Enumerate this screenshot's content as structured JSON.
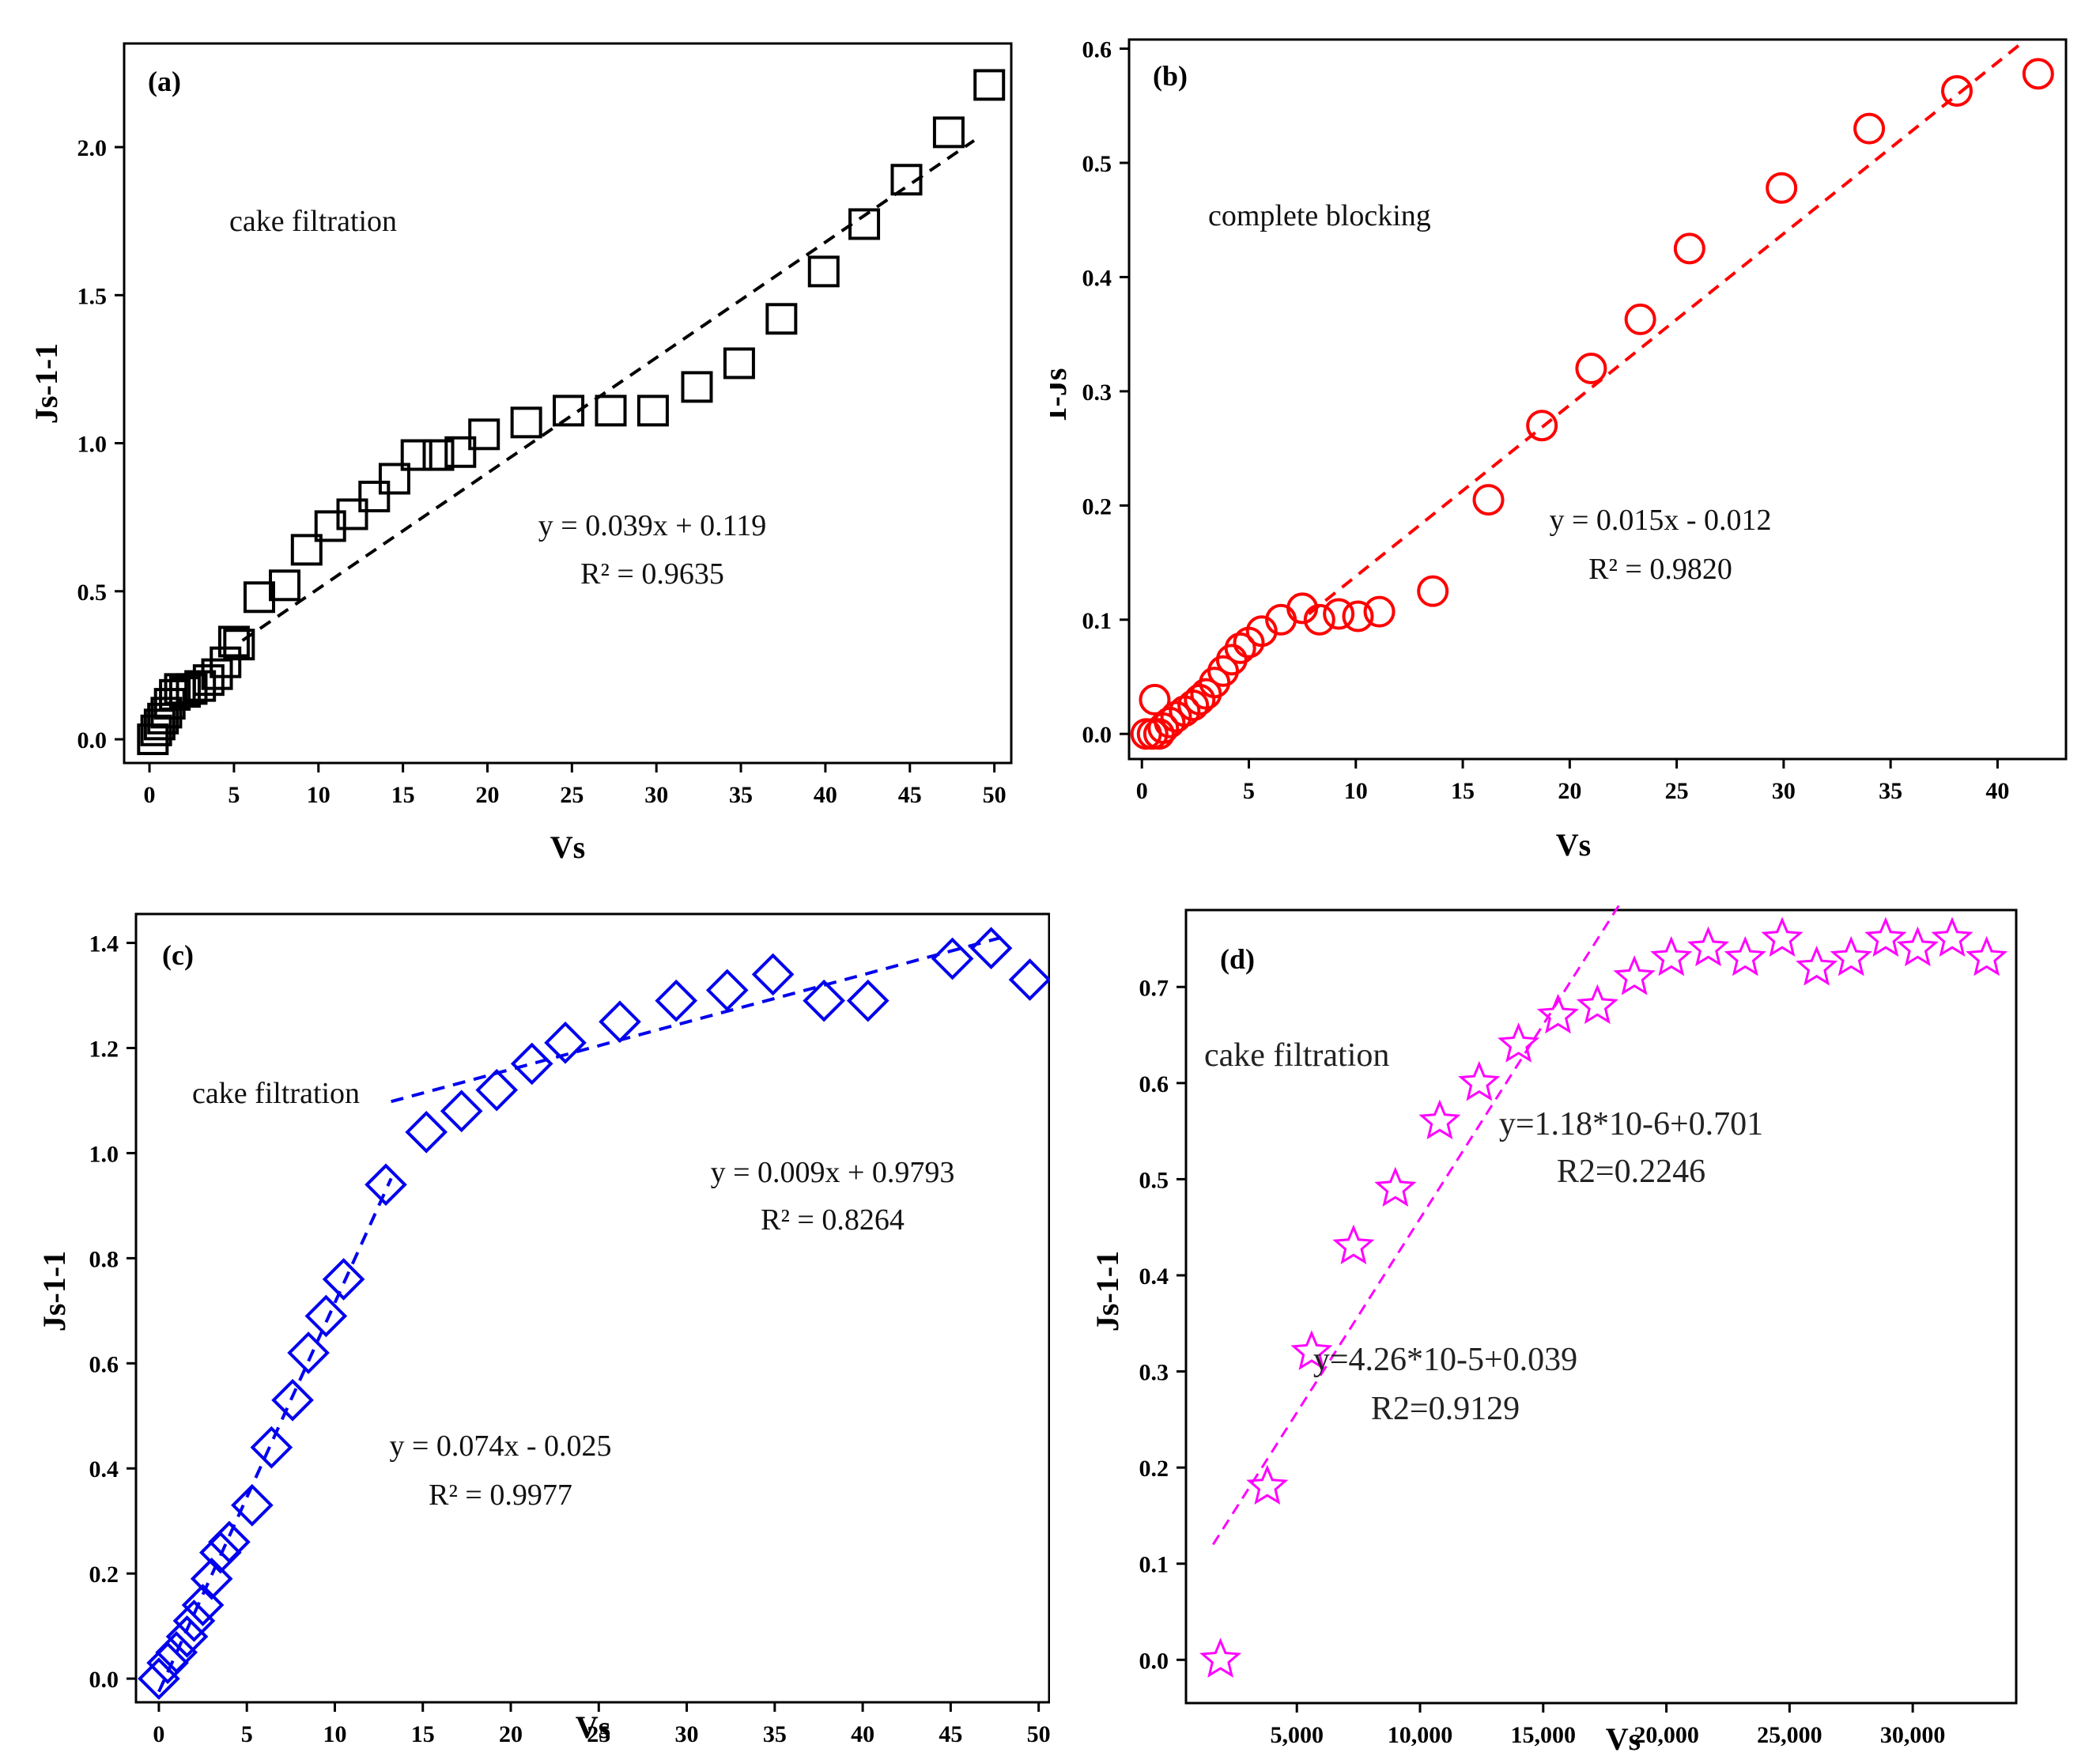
{
  "chart_data": [
    {
      "id": "a",
      "type": "scatter",
      "panel_label": "(a)",
      "annotation": "cake filtration",
      "xlabel": "Vs",
      "ylabel": "Js-1-1",
      "xlim": [
        -1.5,
        51
      ],
      "ylim": [
        -0.08,
        2.35
      ],
      "xticks": [
        0,
        5,
        10,
        15,
        20,
        25,
        30,
        35,
        40,
        45,
        50
      ],
      "yticks": [
        0.0,
        0.5,
        1.0,
        1.5,
        2.0
      ],
      "ytick_labels": [
        "0.0",
        "0.5",
        "1.0",
        "1.5",
        "2.0"
      ],
      "color": "#000000",
      "marker": "square",
      "points": [
        [
          0.2,
          0.0
        ],
        [
          0.4,
          0.03
        ],
        [
          0.6,
          0.05
        ],
        [
          0.8,
          0.07
        ],
        [
          1.0,
          0.09
        ],
        [
          1.2,
          0.12
        ],
        [
          1.5,
          0.15
        ],
        [
          1.8,
          0.17
        ],
        [
          2.1,
          0.16
        ],
        [
          2.5,
          0.17
        ],
        [
          3.0,
          0.18
        ],
        [
          3.5,
          0.2
        ],
        [
          4.0,
          0.22
        ],
        [
          4.5,
          0.26
        ],
        [
          5.0,
          0.33
        ],
        [
          5.3,
          0.32
        ],
        [
          6.5,
          0.48
        ],
        [
          8.0,
          0.52
        ],
        [
          9.3,
          0.64
        ],
        [
          10.7,
          0.72
        ],
        [
          12.0,
          0.76
        ],
        [
          13.3,
          0.82
        ],
        [
          14.5,
          0.88
        ],
        [
          15.8,
          0.96
        ],
        [
          17.1,
          0.96
        ],
        [
          18.4,
          0.97
        ],
        [
          19.8,
          1.03
        ],
        [
          22.3,
          1.07
        ],
        [
          24.8,
          1.11
        ],
        [
          27.3,
          1.11
        ],
        [
          29.8,
          1.11
        ],
        [
          32.4,
          1.19
        ],
        [
          34.9,
          1.27
        ],
        [
          37.4,
          1.42
        ],
        [
          39.9,
          1.58
        ],
        [
          42.3,
          1.74
        ],
        [
          44.8,
          1.89
        ],
        [
          47.3,
          2.05
        ],
        [
          49.7,
          2.21
        ]
      ],
      "fit": {
        "slope": 0.039,
        "intercept": 0.119,
        "x_range": [
          5.5,
          48.8
        ]
      },
      "equation": "y = 0.039x + 0.119",
      "r2": "R² = 0.9635"
    },
    {
      "id": "b",
      "type": "scatter",
      "panel_label": "(b)",
      "annotation": "complete blocking",
      "xlabel": "Vs",
      "ylabel": "1-Js",
      "xlim": [
        -0.6,
        43.2
      ],
      "ylim": [
        -0.022,
        0.608
      ],
      "xticks": [
        0,
        5,
        10,
        15,
        20,
        25,
        30,
        35,
        40
      ],
      "yticks": [
        0.0,
        0.1,
        0.2,
        0.3,
        0.4,
        0.5,
        0.6
      ],
      "ytick_labels": [
        "0.0",
        "0.1",
        "0.2",
        "0.3",
        "0.4",
        "0.5",
        "0.6"
      ],
      "color": "#ff0000",
      "marker": "circle",
      "points": [
        [
          0.2,
          0.0
        ],
        [
          0.5,
          0.0
        ],
        [
          0.6,
          0.03
        ],
        [
          0.8,
          0.0
        ],
        [
          1.0,
          0.005
        ],
        [
          1.3,
          0.01
        ],
        [
          1.6,
          0.015
        ],
        [
          2.0,
          0.02
        ],
        [
          2.4,
          0.025
        ],
        [
          2.7,
          0.03
        ],
        [
          3.0,
          0.035
        ],
        [
          3.4,
          0.045
        ],
        [
          3.8,
          0.055
        ],
        [
          4.2,
          0.065
        ],
        [
          4.6,
          0.075
        ],
        [
          5.0,
          0.08
        ],
        [
          5.6,
          0.09
        ],
        [
          6.5,
          0.1
        ],
        [
          7.5,
          0.11
        ],
        [
          8.3,
          0.1
        ],
        [
          9.2,
          0.105
        ],
        [
          10.1,
          0.103
        ],
        [
          11.1,
          0.107
        ],
        [
          13.6,
          0.125
        ],
        [
          16.2,
          0.205
        ],
        [
          18.7,
          0.27
        ],
        [
          21.0,
          0.32
        ],
        [
          23.3,
          0.363
        ],
        [
          25.6,
          0.425
        ],
        [
          29.9,
          0.478
        ],
        [
          34.0,
          0.53
        ],
        [
          38.1,
          0.563
        ],
        [
          41.9,
          0.578
        ]
      ],
      "fit": {
        "slope": 0.015,
        "intercept": -0.012,
        "x_range": [
          7.8,
          41.3
        ]
      },
      "equation": "y = 0.015x - 0.012",
      "r2": "R² = 0.9820"
    },
    {
      "id": "c",
      "type": "scatter",
      "panel_label": "(c)",
      "annotation": "cake filtration",
      "xlabel": "Vs",
      "ylabel": "Js-1-1",
      "xlim": [
        -1.3,
        50.6
      ],
      "ylim": [
        -0.045,
        1.455
      ],
      "xticks": [
        0,
        5,
        10,
        15,
        20,
        25,
        30,
        35,
        40,
        45,
        50
      ],
      "yticks": [
        0.0,
        0.2,
        0.4,
        0.6,
        0.8,
        1.0,
        1.2,
        1.4
      ],
      "ytick_labels": [
        "0.0",
        "0.2",
        "0.4",
        "0.6",
        "0.8",
        "1.0",
        "1.2",
        "1.4"
      ],
      "color": "#0000ee",
      "marker": "diamond",
      "points": [
        [
          0.0,
          0.0
        ],
        [
          0.5,
          0.03
        ],
        [
          1.0,
          0.05
        ],
        [
          1.6,
          0.08
        ],
        [
          2.0,
          0.11
        ],
        [
          2.5,
          0.14
        ],
        [
          3.0,
          0.19
        ],
        [
          3.5,
          0.24
        ],
        [
          4.0,
          0.26
        ],
        [
          5.3,
          0.33
        ],
        [
          6.4,
          0.44
        ],
        [
          7.6,
          0.53
        ],
        [
          8.5,
          0.62
        ],
        [
          9.5,
          0.69
        ],
        [
          10.5,
          0.76
        ],
        [
          12.9,
          0.94
        ],
        [
          15.2,
          1.04
        ],
        [
          17.2,
          1.08
        ],
        [
          19.2,
          1.12
        ],
        [
          21.2,
          1.17
        ],
        [
          23.1,
          1.21
        ],
        [
          26.2,
          1.25
        ],
        [
          29.4,
          1.29
        ],
        [
          32.3,
          1.31
        ],
        [
          34.9,
          1.34
        ],
        [
          37.8,
          1.29
        ],
        [
          40.3,
          1.29
        ],
        [
          45.1,
          1.37
        ],
        [
          47.3,
          1.39
        ],
        [
          49.5,
          1.33
        ]
      ],
      "fits": [
        {
          "slope": 0.074,
          "intercept": -0.025,
          "x_range": [
            0.0,
            13.2
          ]
        },
        {
          "slope": 0.009,
          "intercept": 0.9793,
          "x_range": [
            13.2,
            48.2
          ]
        }
      ],
      "equations": [
        "y = 0.074x - 0.025",
        "y = 0.009x + 0.9793"
      ],
      "r2s": [
        "R² = 0.9977",
        "R² = 0.8264"
      ]
    },
    {
      "id": "d",
      "type": "scatter",
      "panel_label": "(d)",
      "annotation": "cake  filtration",
      "xlabel": "Vs",
      "ylabel": "Js-1-1",
      "xlim": [
        500,
        34200
      ],
      "ylim": [
        -0.045,
        0.78
      ],
      "xticks": [
        5000,
        10000,
        15000,
        20000,
        25000,
        30000
      ],
      "xtick_labels": [
        "5,000",
        "10,000",
        "15,000",
        "20,000",
        "25,000",
        "30,000"
      ],
      "yticks": [
        0.0,
        0.1,
        0.2,
        0.3,
        0.4,
        0.5,
        0.6,
        0.7
      ],
      "ytick_labels": [
        "0.0",
        "0.1",
        "0.2",
        "0.3",
        "0.4",
        "0.5",
        "0.6",
        "0.7"
      ],
      "color": "#ff00ff",
      "marker": "star",
      "points": [
        [
          1900,
          0.0
        ],
        [
          3800,
          0.18
        ],
        [
          5600,
          0.32
        ],
        [
          7300,
          0.43
        ],
        [
          9000,
          0.49
        ],
        [
          10800,
          0.56
        ],
        [
          12400,
          0.6
        ],
        [
          14000,
          0.64
        ],
        [
          15600,
          0.67
        ],
        [
          17200,
          0.68
        ],
        [
          18700,
          0.71
        ],
        [
          20200,
          0.73
        ],
        [
          21700,
          0.74
        ],
        [
          23200,
          0.73
        ],
        [
          24700,
          0.75
        ],
        [
          26100,
          0.72
        ],
        [
          27500,
          0.73
        ],
        [
          28900,
          0.75
        ],
        [
          30200,
          0.74
        ],
        [
          31600,
          0.75
        ],
        [
          33000,
          0.73
        ]
      ],
      "fit_line": {
        "x_range": [
          1600,
          18200
        ],
        "y_range": [
          0.12,
          0.79
        ]
      },
      "equations": [
        "y=1.18*10-6+0.701",
        "y=4.26*10-5+0.039"
      ],
      "r2s": [
        "R2=0.2246",
        "R2=0.9129"
      ]
    }
  ]
}
